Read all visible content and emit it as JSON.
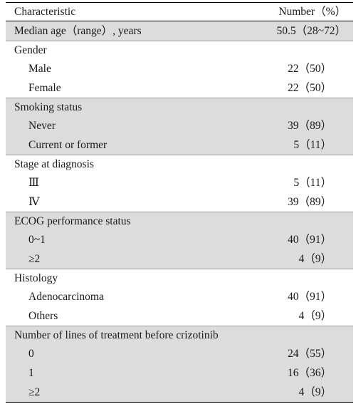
{
  "header": {
    "characteristic": "Characteristic",
    "number": "Number（%）"
  },
  "rows": [
    {
      "label": "Median age（range）, years",
      "value": "50.5（28~72）"
    },
    {
      "label": "Gender",
      "value": ""
    },
    {
      "label": "Male",
      "value": "22（50）"
    },
    {
      "label": "Female",
      "value": "22（50）"
    },
    {
      "label": "Smoking status",
      "value": ""
    },
    {
      "label": "Never",
      "value": "39（89）"
    },
    {
      "label": "Current or former",
      "value": "5（11）"
    },
    {
      "label": "Stage at diagnosis",
      "value": ""
    },
    {
      "label": "Ⅲ",
      "value": "5（11）"
    },
    {
      "label": "Ⅳ",
      "value": "39（89）"
    },
    {
      "label": "ECOG performance status",
      "value": ""
    },
    {
      "label": "0~1",
      "value": "40（91）"
    },
    {
      "label": "≥2",
      "value": "4（9）"
    },
    {
      "label": "Histology",
      "value": ""
    },
    {
      "label": "Adenocarcinoma",
      "value": "40（91）"
    },
    {
      "label": "Others",
      "value": "4（9）"
    },
    {
      "label": "Number of lines of treatment before crizotinib",
      "value": ""
    },
    {
      "label": "0",
      "value": "24（55）"
    },
    {
      "label": "1",
      "value": "16（36）"
    },
    {
      "label": "≥2",
      "value": "4（9）"
    }
  ]
}
